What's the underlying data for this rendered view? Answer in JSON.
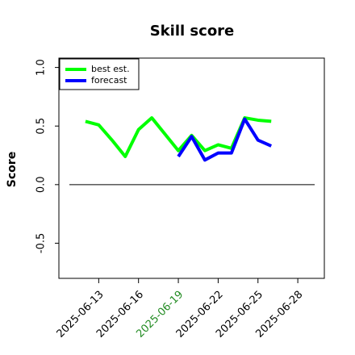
{
  "chart_data": {
    "type": "line",
    "title": "Skill score",
    "ylabel": "Score",
    "x": [
      "2025-06-12",
      "2025-06-13",
      "2025-06-14",
      "2025-06-15",
      "2025-06-16",
      "2025-06-17",
      "2025-06-18",
      "2025-06-19",
      "2025-06-20",
      "2025-06-21",
      "2025-06-22",
      "2025-06-23",
      "2025-06-24",
      "2025-06-25",
      "2025-06-26"
    ],
    "series": [
      {
        "name": "best est.",
        "color": "#00ff00",
        "values": [
          0.54,
          0.51,
          0.38,
          0.24,
          0.47,
          0.57,
          0.43,
          0.29,
          0.42,
          0.29,
          0.34,
          0.31,
          0.57,
          0.55,
          0.54
        ]
      },
      {
        "name": "forecast",
        "color": "#0000ff",
        "values": [
          null,
          null,
          null,
          null,
          null,
          null,
          null,
          0.24,
          0.41,
          0.21,
          0.27,
          0.27,
          0.56,
          0.38,
          0.33
        ]
      }
    ],
    "xlim": [
      "2025-06-10",
      "2025-06-30"
    ],
    "xticks": [
      "2025-06-13",
      "2025-06-16",
      "2025-06-19",
      "2025-06-22",
      "2025-06-25",
      "2025-06-28"
    ],
    "highlight_xtick": "2025-06-19",
    "highlight_color": "#228b22",
    "ylim": [
      -0.8,
      1.08
    ],
    "yticks": [
      -0.5,
      {
        "value": 0,
        "label": "0.0"
      },
      0.5,
      {
        "value": 1,
        "label": "1.0"
      }
    ],
    "hline": 0,
    "grid": false,
    "legend": "upper-left"
  }
}
